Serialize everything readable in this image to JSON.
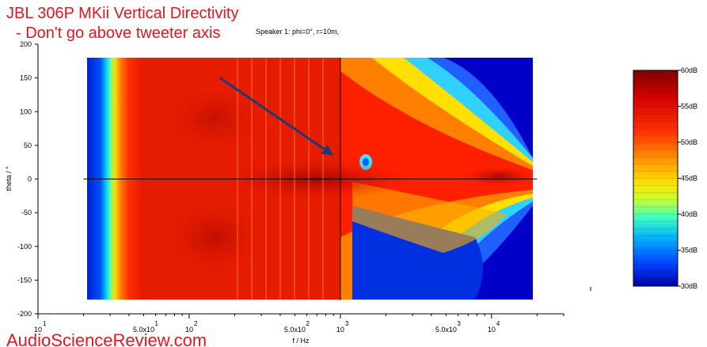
{
  "chart_data": {
    "type": "heatmap",
    "title": "JBL 306P  MKii Vertical Directivity",
    "subtitle": "- Don't go above tweeter axis",
    "plot_title": "Speaker 1: phi=0°, r=10m,",
    "xlabel": "f / Hz",
    "ylabel": "theta / °",
    "x_scale": "log",
    "xlim": [
      10,
      30000
    ],
    "ylim": [
      -200,
      200
    ],
    "x_ticks": [
      {
        "value": 10,
        "label": "10",
        "sup": "1"
      },
      {
        "value": 50,
        "label": "5.0x10",
        "sup": "1"
      },
      {
        "value": 100,
        "label": "10",
        "sup": "2"
      },
      {
        "value": 500,
        "label": "5.0x10",
        "sup": "2"
      },
      {
        "value": 1000,
        "label": "10",
        "sup": "3"
      },
      {
        "value": 5000,
        "label": "5.0x10",
        "sup": "3"
      },
      {
        "value": 10000,
        "label": "10",
        "sup": "4"
      }
    ],
    "y_ticks": [
      200,
      150,
      100,
      50,
      0,
      -50,
      -100,
      -150,
      -200
    ],
    "data_x_range": [
      20,
      20000
    ],
    "data_y_range": [
      -180,
      180
    ],
    "reference_lines": {
      "x": 1000,
      "y": 0
    },
    "colorbar": {
      "min": 30,
      "max": 60,
      "unit": "dB",
      "ticks": [
        "60dB",
        "55dB",
        "50dB",
        "45dB",
        "40dB",
        "35dB",
        "30dB"
      ]
    },
    "annotation": {
      "type": "arrow",
      "color": "#1f3b73",
      "from": [
        160,
        150
      ],
      "to": [
        900,
        35
      ]
    },
    "grid": false,
    "legend": "colorbar-right"
  },
  "watermark": "AudioScienceReview.com"
}
